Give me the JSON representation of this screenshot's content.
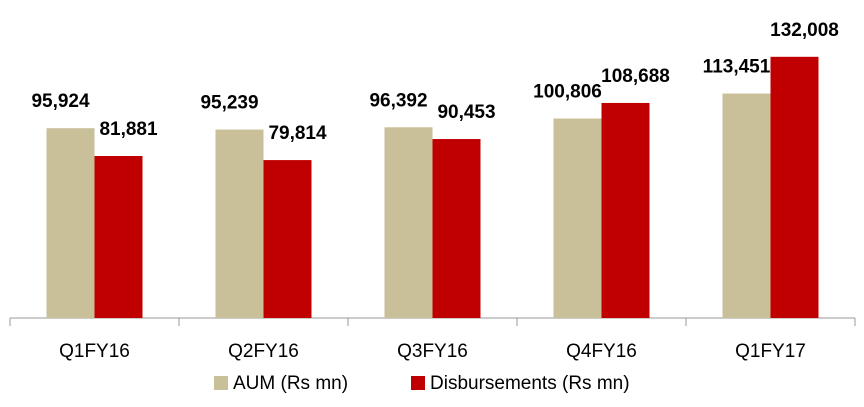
{
  "chart_data": {
    "type": "bar",
    "categories": [
      "Q1FY16",
      "Q2FY16",
      "Q3FY16",
      "Q4FY16",
      "Q1FY17"
    ],
    "series": [
      {
        "name": "AUM (Rs mn)",
        "color": "#c9bf99",
        "values": [
          95924,
          95239,
          96392,
          100806,
          113451
        ],
        "value_labels": [
          "95,924",
          "95,239",
          "96,392",
          "100,806",
          "113,451"
        ]
      },
      {
        "name": "Disbursements (Rs mn)",
        "color": "#c00000",
        "values": [
          81881,
          79814,
          90453,
          108688,
          132008
        ],
        "value_labels": [
          "81,881",
          "79,814",
          "90,453",
          "108,688",
          "132,008"
        ]
      }
    ],
    "ylim": [
      0,
      140000
    ],
    "grid": false
  }
}
